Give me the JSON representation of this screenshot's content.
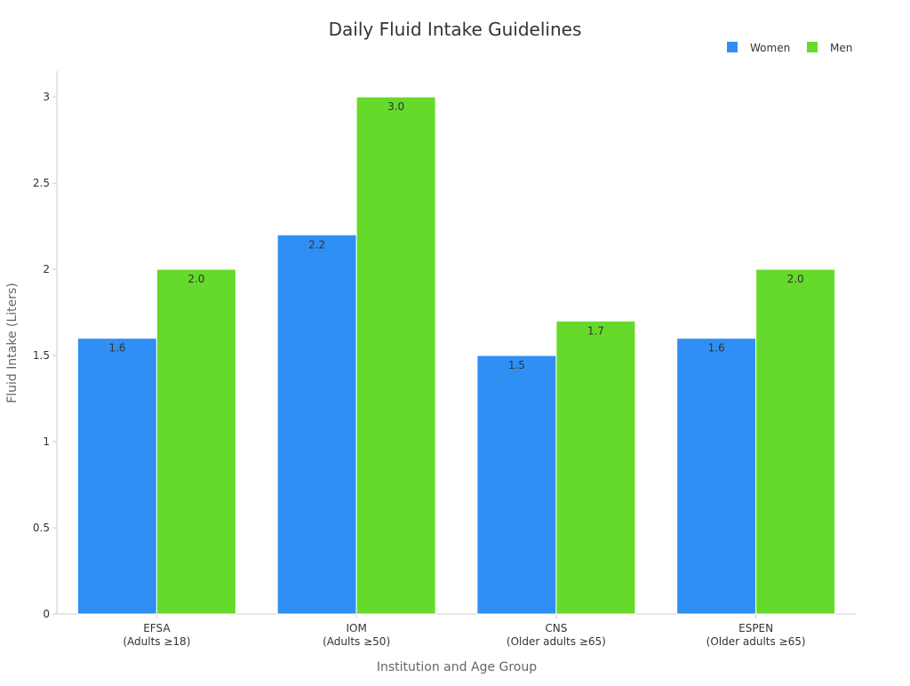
{
  "chart_data": {
    "type": "bar",
    "title": "Daily Fluid Intake Guidelines",
    "xlabel": "Institution and Age Group",
    "ylabel": "Fluid Intake (Liters)",
    "ylim": [
      0,
      3.15
    ],
    "yticks": [
      0,
      0.5,
      1,
      1.5,
      2,
      2.5,
      3
    ],
    "ytick_labels": [
      "0",
      "0.5",
      "1",
      "1.5",
      "2",
      "2.5",
      "3"
    ],
    "categories": [
      [
        "EFSA",
        "(Adults ≥18)"
      ],
      [
        "IOM",
        "(Adults ≥50)"
      ],
      [
        "CNS",
        "(Older adults ≥65)"
      ],
      [
        "ESPEN",
        "(Older adults ≥65)"
      ]
    ],
    "series": [
      {
        "name": "Women",
        "color": "#2f8ff5",
        "values": [
          1.6,
          2.2,
          1.5,
          1.6
        ],
        "labels": [
          "1.6",
          "2.2",
          "1.5",
          "1.6"
        ]
      },
      {
        "name": "Men",
        "color": "#66da2a",
        "values": [
          2.0,
          3.0,
          1.7,
          2.0
        ],
        "labels": [
          "2.0",
          "3.0",
          "1.7",
          "2.0"
        ]
      }
    ],
    "grid": false,
    "legend_position": "top-right",
    "axis_color": "#cccccc",
    "text_color": "#333333",
    "label_color": "#666666"
  }
}
